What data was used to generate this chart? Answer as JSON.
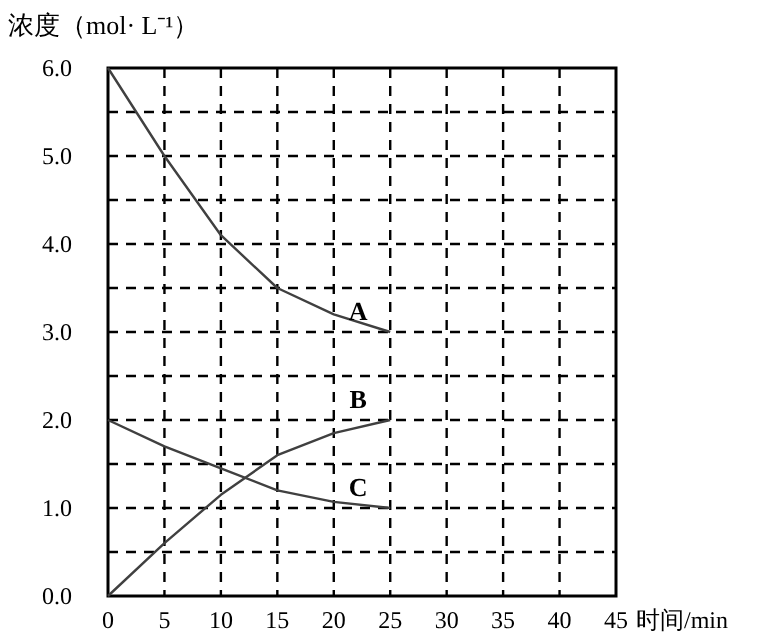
{
  "chart_data": {
    "type": "line",
    "ylabel": "浓度（mol· L⁻¹）",
    "xlabel": "时间/min",
    "xlim": [
      0,
      45
    ],
    "ylim": [
      0,
      6
    ],
    "xticks": [
      0,
      5,
      10,
      15,
      20,
      25,
      30,
      35,
      40,
      45
    ],
    "yticks": [
      {
        "value": 0,
        "label": "0.0"
      },
      {
        "value": 0.5,
        "label": null
      },
      {
        "value": 1,
        "label": "1.0"
      },
      {
        "value": 1.5,
        "label": null
      },
      {
        "value": 2,
        "label": "2.0"
      },
      {
        "value": 2.5,
        "label": null
      },
      {
        "value": 3,
        "label": "3.0"
      },
      {
        "value": 3.5,
        "label": null
      },
      {
        "value": 4,
        "label": "4.0"
      },
      {
        "value": 4.5,
        "label": null
      },
      {
        "value": 5,
        "label": "5.0"
      },
      {
        "value": 5.5,
        "label": null
      },
      {
        "value": 6,
        "label": "6.0"
      }
    ],
    "grid": true,
    "line_style": "solid",
    "marker": "none",
    "series": [
      {
        "name": "A",
        "color": "#404040",
        "x": [
          0,
          5,
          10,
          15,
          20,
          25
        ],
        "values": [
          6.0,
          5.0,
          4.1,
          3.5,
          3.2,
          3.0
        ]
      },
      {
        "name": "B",
        "color": "#404040",
        "x": [
          0,
          5,
          10,
          15,
          20,
          25
        ],
        "values": [
          0,
          0.6,
          1.15,
          1.6,
          1.85,
          2.0
        ]
      },
      {
        "name": "C",
        "color": "#404040",
        "x": [
          0,
          5,
          10,
          15,
          20,
          25
        ],
        "values": [
          2.0,
          1.7,
          1.45,
          1.2,
          1.07,
          1.0
        ]
      }
    ]
  }
}
